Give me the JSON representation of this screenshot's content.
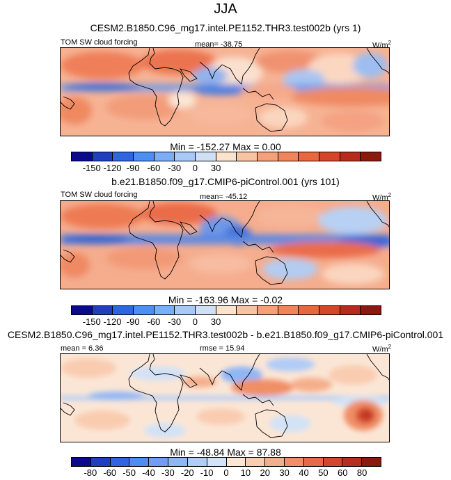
{
  "page": {
    "title": "JJA"
  },
  "panels": [
    {
      "case": "CESM2.B1850.C96_mg17.intel.PE1152.THR3.test002b (yrs 1)",
      "variable": "TOM SW cloud forcing",
      "stat": "mean= -38.75",
      "units": "W/m",
      "units_sup": "2",
      "minmax": "Min = -152.27 Max =   0.00",
      "tick_labels": [
        "-150",
        "-120",
        "-90",
        "-60",
        "-30",
        "0",
        "30"
      ],
      "colors": [
        "#0a0a8a",
        "#1f3fbf",
        "#2f66e0",
        "#4d8ef2",
        "#7aaef7",
        "#a7c9f7",
        "#cfe0f5",
        "#fce3cc",
        "#f8c3a2",
        "#f5a07a",
        "#f0845c",
        "#e8673f",
        "#d4452a",
        "#b82b1c",
        "#8b1a0e"
      ]
    },
    {
      "case": "b.e21.B1850.f09_g17.CMIP6-piControl.001 (yrs 101)",
      "variable": "TOM SW cloud forcing",
      "stat": "mean= -45.12",
      "units": "W/m",
      "units_sup": "2",
      "minmax": "Min = -163.96 Max =  -0.02",
      "tick_labels": [
        "-150",
        "-120",
        "-90",
        "-60",
        "-30",
        "0",
        "30"
      ],
      "colors": [
        "#0a0a8a",
        "#1f3fbf",
        "#2f66e0",
        "#4d8ef2",
        "#7aaef7",
        "#a7c9f7",
        "#cfe0f5",
        "#fce3cc",
        "#f8c3a2",
        "#f5a07a",
        "#f0845c",
        "#e8673f",
        "#d4452a",
        "#b82b1c",
        "#8b1a0e"
      ]
    },
    {
      "case": "CESM2.B1850.C96_mg17.intel.PE1152.THR3.test002b - b.e21.B1850.f09_g17.CMIP6-piControl.001",
      "variable": "mean =   6.36",
      "stat": "rmse = 15.94",
      "units": "W/m",
      "units_sup": "2",
      "minmax": "Min = -48.84 Max =  87.88",
      "tick_labels": [
        "-80",
        "-60",
        "-50",
        "-40",
        "-30",
        "-20",
        "-10",
        "0",
        "10",
        "20",
        "30",
        "40",
        "50",
        "60",
        "80"
      ],
      "colors": [
        "#0a0a8a",
        "#1f3fbf",
        "#2f66e0",
        "#4d8ef2",
        "#6e9ff5",
        "#8fb6f6",
        "#b0ccf7",
        "#d2e2f7",
        "#fbe6d6",
        "#f9ccb0",
        "#f5ae8a",
        "#f08e66",
        "#e46b45",
        "#d1482b",
        "#b52d1b",
        "#8b1a0e"
      ]
    }
  ],
  "chart_data": [
    {
      "type": "heatmap",
      "title": "CESM2.B1850.C96_mg17.intel.PE1152.THR3.test002b (yrs 1)",
      "variable": "TOM SW cloud forcing",
      "units": "W/m2",
      "mean": -38.75,
      "min": -152.27,
      "max": 0.0,
      "colorbar_ticks": [
        -150,
        -120,
        -90,
        -60,
        -30,
        0,
        30
      ]
    },
    {
      "type": "heatmap",
      "title": "b.e21.B1850.f09_g17.CMIP6-piControl.001 (yrs 101)",
      "variable": "TOM SW cloud forcing",
      "units": "W/m2",
      "mean": -45.12,
      "min": -163.96,
      "max": -0.02,
      "colorbar_ticks": [
        -150,
        -120,
        -90,
        -60,
        -30,
        0,
        30
      ]
    },
    {
      "type": "heatmap",
      "title": "CESM2.B1850.C96_mg17.intel.PE1152.THR3.test002b - b.e21.B1850.f09_g17.CMIP6-piControl.001",
      "units": "W/m2",
      "mean": 6.36,
      "rmse": 15.94,
      "min": -48.84,
      "max": 87.88,
      "colorbar_ticks": [
        -80,
        -60,
        -50,
        -40,
        -30,
        -20,
        -10,
        0,
        10,
        20,
        30,
        40,
        50,
        60,
        80
      ]
    }
  ]
}
